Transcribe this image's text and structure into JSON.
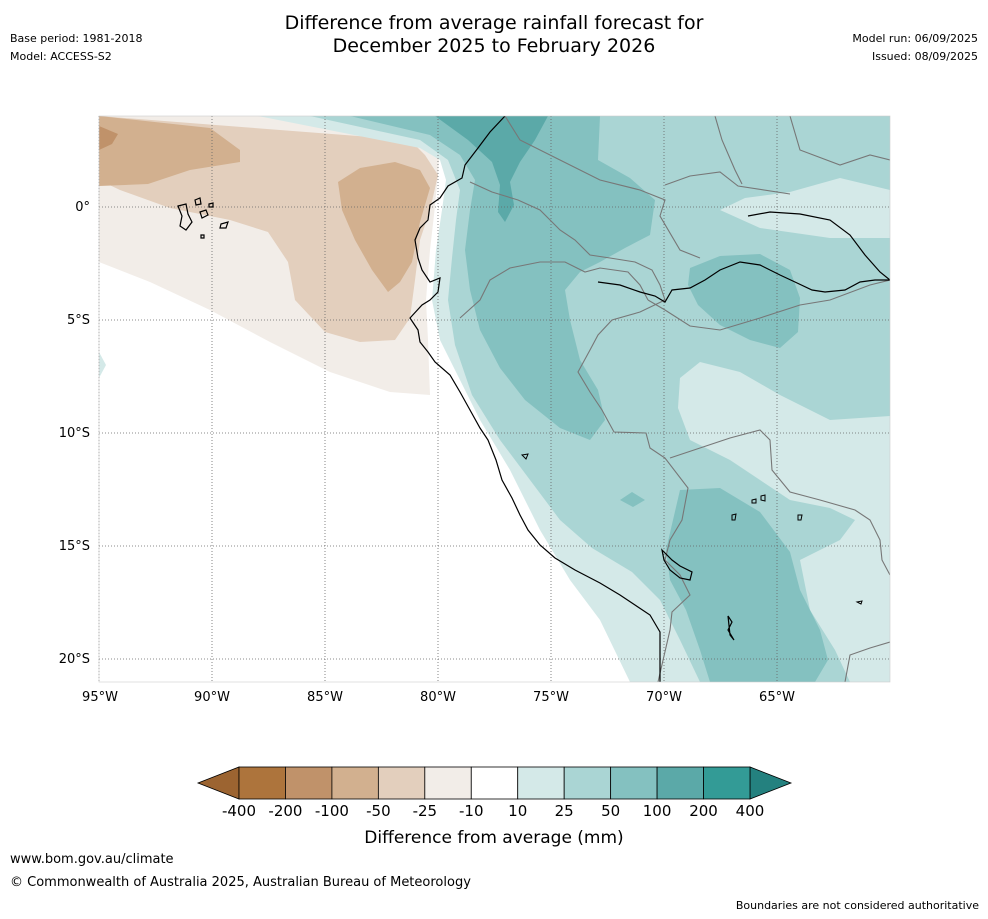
{
  "header": {
    "base_period": "Base period: 1981-2018",
    "model": "Model: ACCESS-S2",
    "title_line1": "Difference from average rainfall forecast for",
    "title_line2": "December 2025 to February 2026",
    "model_run": "Model run: 06/09/2025",
    "issued": "Issued: 08/09/2025"
  },
  "map": {
    "lat_labels": [
      "0°",
      "5°S",
      "10°S",
      "15°S",
      "20°S"
    ],
    "lon_labels": [
      "95°W",
      "90°W",
      "85°W",
      "80°W",
      "75°W",
      "70°W",
      "65°W"
    ]
  },
  "legend": {
    "ticks": [
      "-400",
      "-200",
      "-100",
      "-50",
      "-25",
      "-10",
      "10",
      "25",
      "50",
      "100",
      "200",
      "400"
    ],
    "colors": [
      "#ad743c",
      "#c0926a",
      "#d2b08f",
      "#e3cfbd",
      "#f2ede8",
      "#ffffff",
      "#d4e9e8",
      "#aad5d4",
      "#84c1c0",
      "#5ba9a8",
      "#339b96"
    ],
    "low_color": "#9c6431",
    "high_color": "#24817f",
    "label": "Difference from average (mm)"
  },
  "footer": {
    "url": "www.bom.gov.au/climate",
    "copyright": "© Commonwealth of Australia 2025, Australian Bureau of Meteorology",
    "note": "Boundaries are not considered authoritative"
  }
}
